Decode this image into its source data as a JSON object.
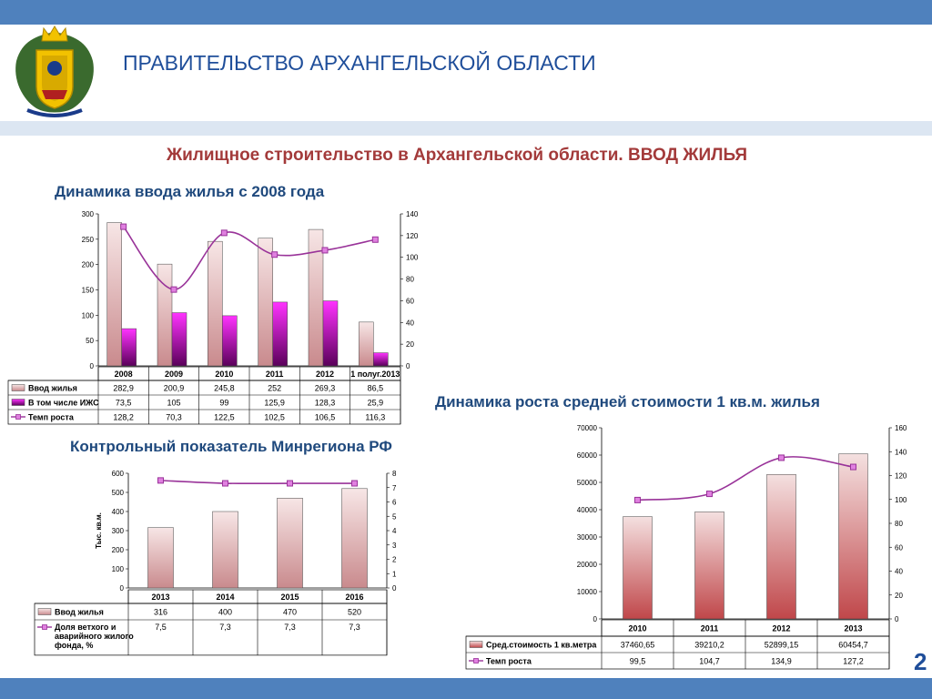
{
  "header": {
    "org_title": "ПРАВИТЕЛЬСТВО АРХАНГЕЛЬСКОЙ ОБЛАСТИ"
  },
  "slide": {
    "title": "Жилищное строительство в Архангельской области. ВВОД ЖИЛЬЯ",
    "page_number": "2"
  },
  "colors": {
    "band": "#4f81bd",
    "title_red": "#a33a3a",
    "heading_blue": "#1f497d",
    "bar_pink": "#e6b3b5",
    "bar_magenta": "#e000e0",
    "line_purple": "#993399"
  },
  "chart_data": [
    {
      "id": "housing-dynamics",
      "type": "bar",
      "title": "Динамика ввода жилья с 2008 года",
      "categories": [
        "2008",
        "2009",
        "2010",
        "2011",
        "2012",
        "1 полуг.2013"
      ],
      "ylim": [
        0,
        300
      ],
      "yticks": [
        "0",
        "50",
        "100",
        "150",
        "200",
        "250",
        "300"
      ],
      "y2lim": [
        0,
        140
      ],
      "y2ticks": [
        "0",
        "20",
        "40",
        "60",
        "80",
        "100",
        "120",
        "140"
      ],
      "series": [
        {
          "name": "Ввод жилья",
          "axis": "left",
          "kind": "bar",
          "values": [
            282.9,
            200.9,
            245.8,
            252,
            269.3,
            86.5
          ],
          "labels": [
            "282,9",
            "200,9",
            "245,8",
            "252",
            "269,3",
            "86,5"
          ]
        },
        {
          "name": "В том числе ИЖС",
          "axis": "left",
          "kind": "bar",
          "values": [
            73.5,
            105,
            99,
            125.9,
            128.3,
            25.9
          ],
          "labels": [
            "73,5",
            "105",
            "99",
            "125,9",
            "128,3",
            "25,9"
          ]
        },
        {
          "name": "Темп роста",
          "axis": "right",
          "kind": "line",
          "values": [
            128.2,
            70.3,
            122.5,
            102.5,
            106.5,
            116.3
          ],
          "labels": [
            "128,2",
            "70,3",
            "122,5",
            "102,5",
            "106,5",
            "116,3"
          ]
        }
      ]
    },
    {
      "id": "minregion-indicator",
      "type": "bar",
      "title": "Контрольный показатель Минрегиона РФ",
      "ylabel": "Тыс. кв.м.",
      "categories": [
        "2013",
        "2014",
        "2015",
        "2016"
      ],
      "ylim": [
        0,
        600
      ],
      "yticks": [
        "0",
        "100",
        "200",
        "300",
        "400",
        "500",
        "600"
      ],
      "y2lim": [
        0,
        8
      ],
      "y2ticks": [
        "0",
        "1",
        "2",
        "3",
        "4",
        "5",
        "6",
        "7",
        "8"
      ],
      "series": [
        {
          "name": "Ввод жилья",
          "axis": "left",
          "kind": "bar",
          "values": [
            316,
            400,
            470,
            520
          ],
          "labels": [
            "316",
            "400",
            "470",
            "520"
          ]
        },
        {
          "name": "Доля ветхого и аварийного жилого фонда, %",
          "name_lines": [
            "Доля ветхого и",
            "аварийного жилого",
            "фонда, %"
          ],
          "axis": "right",
          "kind": "line",
          "values": [
            7.5,
            7.3,
            7.3,
            7.3
          ],
          "labels": [
            "7,5",
            "7,3",
            "7,3",
            "7,3"
          ]
        }
      ]
    },
    {
      "id": "price-dynamics",
      "type": "bar",
      "title": "Динамика роста средней стоимости 1 кв.м. жилья",
      "categories": [
        "2010",
        "2011",
        "2012",
        "2013"
      ],
      "ylim": [
        0,
        70000
      ],
      "yticks": [
        "0",
        "10000",
        "20000",
        "30000",
        "40000",
        "50000",
        "60000",
        "70000"
      ],
      "y2lim": [
        0,
        160
      ],
      "y2ticks": [
        "0",
        "20",
        "40",
        "60",
        "80",
        "100",
        "120",
        "140",
        "160"
      ],
      "series": [
        {
          "name": "Сред.стоимость 1 кв.метра",
          "axis": "left",
          "kind": "bar",
          "values": [
            37460.65,
            39210.2,
            52899.15,
            60454.7
          ],
          "labels": [
            "37460,65",
            "39210,2",
            "52899,15",
            "60454,7"
          ]
        },
        {
          "name": "Темп роста",
          "axis": "right",
          "kind": "line",
          "values": [
            99.5,
            104.7,
            134.9,
            127.2
          ],
          "labels": [
            "99,5",
            "104,7",
            "134,9",
            "127,2"
          ]
        }
      ]
    }
  ]
}
